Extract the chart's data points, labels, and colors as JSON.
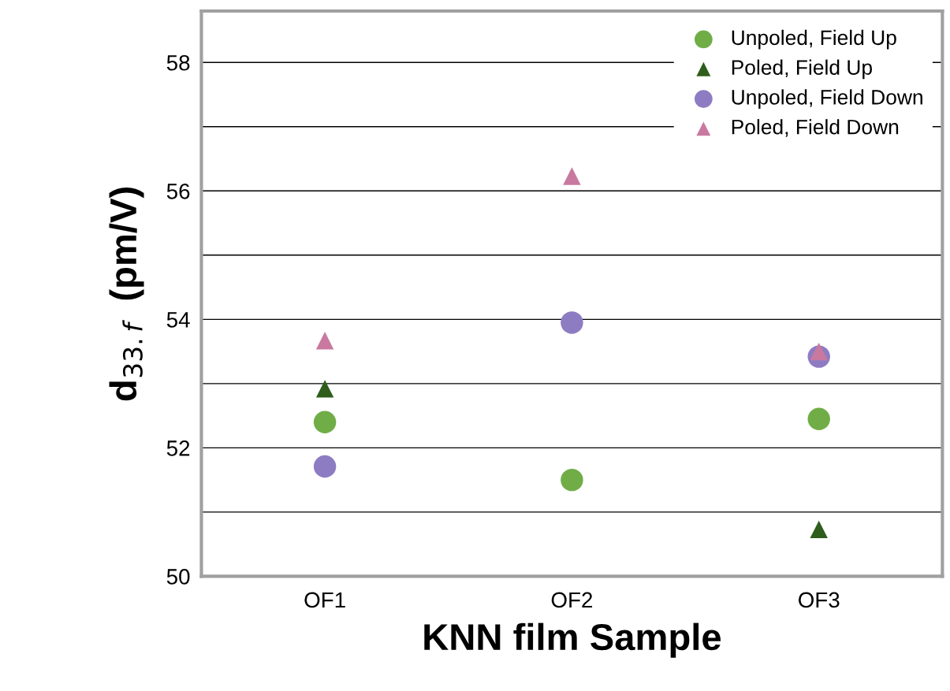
{
  "chart_data": {
    "type": "scatter",
    "xlabel": "KNN film Sample",
    "ylabel": "d$_{33.f}$  (pm/V)",
    "categories": [
      "OF1",
      "OF2",
      "OF3"
    ],
    "series": [
      {
        "name": "Unpoled, Field Up",
        "color": "#70ad47",
        "marker": "circle",
        "values": [
          52.4,
          51.5,
          52.45
        ]
      },
      {
        "name": "Poled, Field Up",
        "color": "#2f5d1c",
        "marker": "triangle",
        "values": [
          52.92,
          null,
          50.73
        ]
      },
      {
        "name": "Unpoled, Field Down",
        "color": "#8e7cc3",
        "marker": "circle",
        "values": [
          51.71,
          53.95,
          53.42
        ]
      },
      {
        "name": "Poled, Field Down",
        "color": "#c9799f",
        "marker": "triangle",
        "values": [
          53.67,
          56.23,
          53.5
        ]
      }
    ],
    "ylim": [
      50,
      58.8
    ],
    "yticks": [
      50,
      {
        "value": 51,
        "label": null
      },
      52,
      {
        "value": 53,
        "label": null
      },
      54,
      {
        "value": 55,
        "label": null
      },
      56,
      {
        "value": 57,
        "label": null
      },
      58
    ],
    "grid": "y",
    "legend": "top right"
  }
}
